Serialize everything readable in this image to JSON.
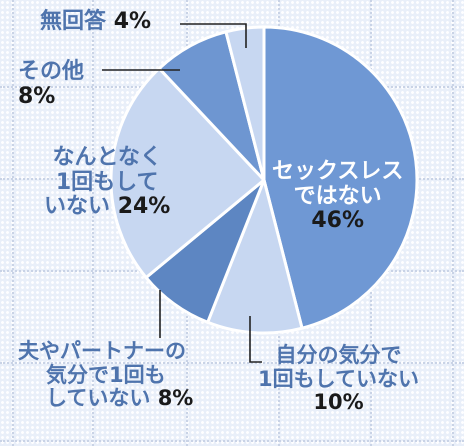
{
  "chart_data": {
    "type": "pie",
    "title": "",
    "start_angle_deg": 0,
    "slices": [
      {
        "label": "セックスレスではない",
        "value": 46,
        "display": "46%",
        "color": "#6f98d4"
      },
      {
        "label": "自分の気分で1回もしていない",
        "value": 10,
        "display": "10%",
        "color": "#c7d7f1"
      },
      {
        "label": "夫やパートナーの気分で1回もしていない",
        "value": 8,
        "display": "8%",
        "color": "#5d86c2"
      },
      {
        "label": "なんとなく1回もしていない",
        "value": 24,
        "display": "24%",
        "color": "#c7d7f1"
      },
      {
        "label": "その他",
        "value": 8,
        "display": "8%",
        "color": "#6e96d1"
      },
      {
        "label": "無回答",
        "value": 4,
        "display": "4%",
        "color": "#c7d7f1"
      }
    ],
    "legend": "none",
    "grid": true
  },
  "labels": {
    "no_answer": {
      "cat": "無回答",
      "pct": "4%"
    },
    "other": {
      "cat": "その他",
      "pct": "8%"
    },
    "nantonaku_l1": "なんとなく",
    "nantonaku_l2": "1回もして",
    "nantonaku_l3": "いない",
    "nantonaku_pct": "24%",
    "partner_l1": "夫やパートナーの",
    "partner_l2": "気分で1回も",
    "partner_l3": "していない",
    "partner_pct": "8%",
    "self_l1": "自分の気分で",
    "self_l2": "1回もしていない",
    "self_pct": "10%",
    "notsexless_l1": "セックスレス",
    "notsexless_l2": "ではない",
    "notsexless_pct": "46%"
  }
}
